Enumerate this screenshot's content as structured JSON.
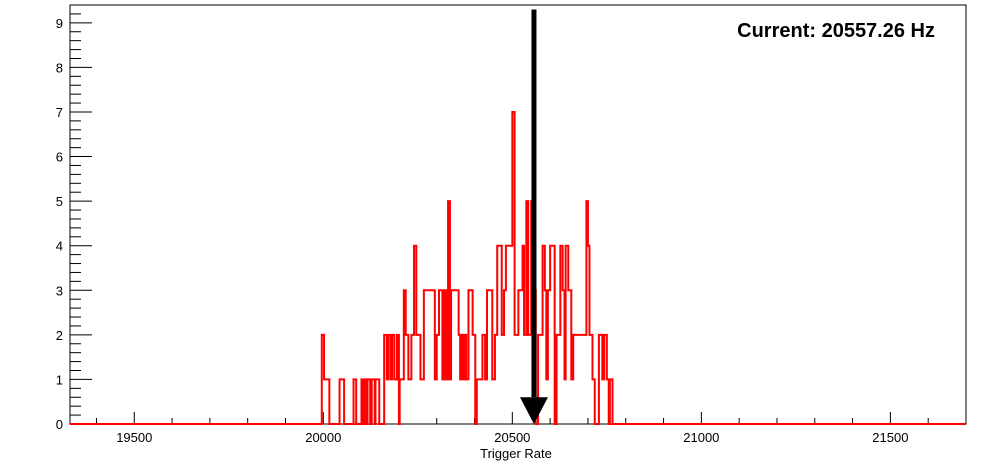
{
  "chart_data": {
    "type": "histogram",
    "title": "",
    "xlabel": "Trigger Rate",
    "ylabel": "",
    "xlim": [
      19330,
      21700
    ],
    "ylim": [
      0,
      9.4
    ],
    "x_ticks": [
      19500,
      20000,
      20500,
      21000,
      21500
    ],
    "y_ticks": [
      0,
      1,
      2,
      3,
      4,
      5,
      6,
      7,
      8,
      9
    ],
    "grid": false,
    "legend": "none",
    "annotation": "Current: 20557.26 Hz",
    "marker_value": 20557.26,
    "series": [
      {
        "color": "#ff0000",
        "steps": [
          [
            19330,
            0
          ],
          [
            19996,
            2
          ],
          [
            20002,
            1
          ],
          [
            20016,
            0
          ],
          [
            20043,
            1
          ],
          [
            20055,
            0
          ],
          [
            20080,
            1
          ],
          [
            20087,
            0
          ],
          [
            20101,
            1
          ],
          [
            20106,
            0
          ],
          [
            20109,
            1
          ],
          [
            20114,
            0
          ],
          [
            20117,
            1
          ],
          [
            20124,
            0
          ],
          [
            20128,
            1
          ],
          [
            20136,
            0
          ],
          [
            20138,
            1
          ],
          [
            20148,
            0
          ],
          [
            20161,
            2
          ],
          [
            20168,
            1
          ],
          [
            20172,
            2
          ],
          [
            20178,
            1
          ],
          [
            20182,
            2
          ],
          [
            20188,
            1
          ],
          [
            20195,
            2
          ],
          [
            20200,
            0
          ],
          [
            20202,
            1
          ],
          [
            20213,
            3
          ],
          [
            20218,
            2
          ],
          [
            20225,
            1
          ],
          [
            20233,
            2
          ],
          [
            20240,
            4
          ],
          [
            20246,
            2
          ],
          [
            20257,
            1
          ],
          [
            20266,
            3
          ],
          [
            20295,
            1
          ],
          [
            20300,
            2
          ],
          [
            20306,
            3
          ],
          [
            20315,
            1
          ],
          [
            20320,
            3
          ],
          [
            20325,
            1
          ],
          [
            20330,
            5
          ],
          [
            20335,
            1
          ],
          [
            20338,
            3
          ],
          [
            20358,
            2
          ],
          [
            20362,
            1
          ],
          [
            20366,
            2
          ],
          [
            20370,
            1
          ],
          [
            20373,
            2
          ],
          [
            20378,
            1
          ],
          [
            20384,
            3
          ],
          [
            20395,
            2
          ],
          [
            20402,
            0
          ],
          [
            20406,
            1
          ],
          [
            20421,
            2
          ],
          [
            20428,
            1
          ],
          [
            20433,
            3
          ],
          [
            20447,
            1
          ],
          [
            20454,
            2
          ],
          [
            20460,
            4
          ],
          [
            20472,
            2
          ],
          [
            20478,
            3
          ],
          [
            20483,
            4
          ],
          [
            20500,
            7
          ],
          [
            20506,
            2
          ],
          [
            20516,
            3
          ],
          [
            20527,
            4
          ],
          [
            20531,
            2
          ],
          [
            20537,
            5
          ],
          [
            20542,
            2
          ],
          [
            20550,
            5
          ],
          [
            20556,
            3
          ],
          [
            20562,
            0
          ],
          [
            20568,
            2
          ],
          [
            20580,
            4
          ],
          [
            20586,
            3
          ],
          [
            20590,
            1
          ],
          [
            20594,
            3
          ],
          [
            20600,
            4
          ],
          [
            20612,
            0
          ],
          [
            20617,
            2
          ],
          [
            20627,
            4
          ],
          [
            20633,
            3
          ],
          [
            20638,
            1
          ],
          [
            20641,
            4
          ],
          [
            20648,
            3
          ],
          [
            20656,
            1
          ],
          [
            20661,
            2
          ],
          [
            20696,
            5
          ],
          [
            20700,
            4
          ],
          [
            20704,
            2
          ],
          [
            20712,
            1
          ],
          [
            20718,
            0
          ],
          [
            20729,
            2
          ],
          [
            20738,
            1
          ],
          [
            20743,
            2
          ],
          [
            20750,
            1
          ],
          [
            20755,
            0
          ],
          [
            20758,
            1
          ],
          [
            20765,
            0
          ],
          [
            20770,
            0
          ],
          [
            21700,
            0
          ]
        ]
      }
    ]
  }
}
